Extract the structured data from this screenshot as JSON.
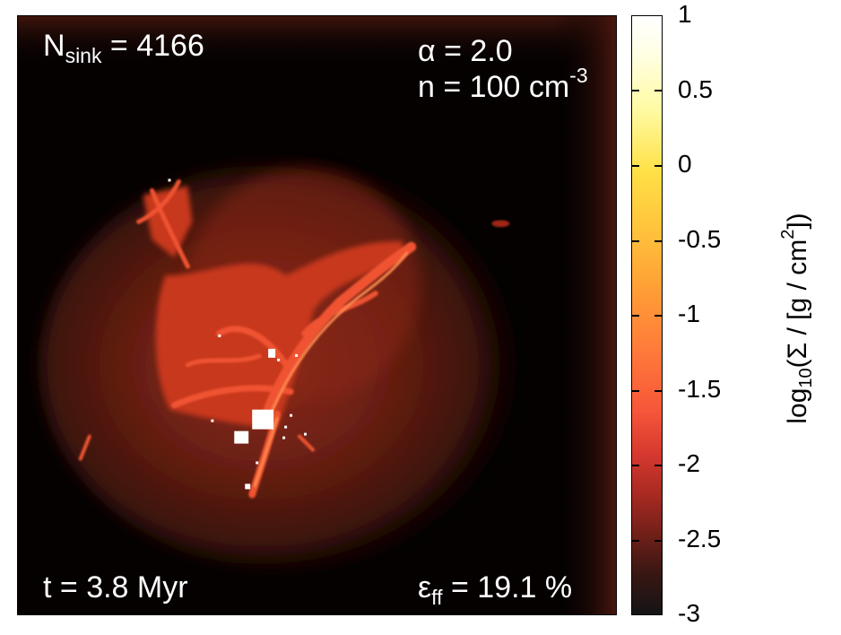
{
  "annotations": {
    "nsink_base": "N",
    "nsink_sub": "sink",
    "nsink_value": " = 4166",
    "alpha": "α = 2.0",
    "density_text": "n = 100 cm",
    "density_exp": "-3",
    "time": "t = 3.8 Myr",
    "eff_symbol": "ε",
    "eff_sub": "ff",
    "eff_value": " = 19.1 %"
  },
  "colorbar": {
    "title_prefix": "log",
    "title_sub": "10",
    "title_mid": "(Σ / [g / cm",
    "title_sup": "2",
    "title_suffix": "])",
    "ticks": [
      "1",
      "0.5",
      "0",
      "-0.5",
      "-1",
      "-1.5",
      "-2",
      "-2.5",
      "-3"
    ],
    "range": [
      -3,
      1
    ],
    "colors": {
      "top": "#ffffff",
      "mid": "#ff9d36",
      "low": "#d7392f",
      "bottom": "#141414"
    }
  }
}
